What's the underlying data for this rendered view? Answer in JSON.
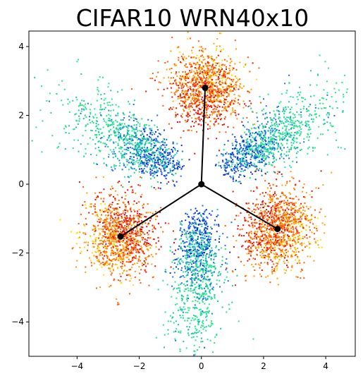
{
  "chart_data": {
    "type": "scatter",
    "title": "CIFAR10 WRN40x10",
    "xlabel": "",
    "ylabel": "",
    "xlim": [
      -5.55,
      4.95
    ],
    "ylim": [
      -5.0,
      4.45
    ],
    "xticks": [
      -4,
      -2,
      0,
      2,
      4
    ],
    "yticks": [
      -4,
      -2,
      0,
      2,
      4
    ],
    "grid": false,
    "colormap": [
      "#0a2fd0",
      "#1f6ff0",
      "#19c9a8",
      "#25e68c",
      "#ffdd00",
      "#ffa000",
      "#ff5a00",
      "#e01010"
    ],
    "point_color": "#000000",
    "line_color": "#000000",
    "clusters": [
      {
        "name": "top",
        "center": [
          0.12,
          2.8
        ]
      },
      {
        "name": "lower-left",
        "center": [
          -2.6,
          -1.52
        ]
      },
      {
        "name": "lower-right",
        "center": [
          2.45,
          -1.3
        ]
      }
    ],
    "origin": [
      0.0,
      0.0
    ],
    "segments": [
      {
        "from": [
          0.0,
          0.0
        ],
        "to": [
          0.12,
          2.8
        ]
      },
      {
        "from": [
          0.0,
          0.0
        ],
        "to": [
          -2.6,
          -1.52
        ]
      },
      {
        "from": [
          0.0,
          0.0
        ],
        "to": [
          2.45,
          -1.3
        ]
      }
    ]
  }
}
